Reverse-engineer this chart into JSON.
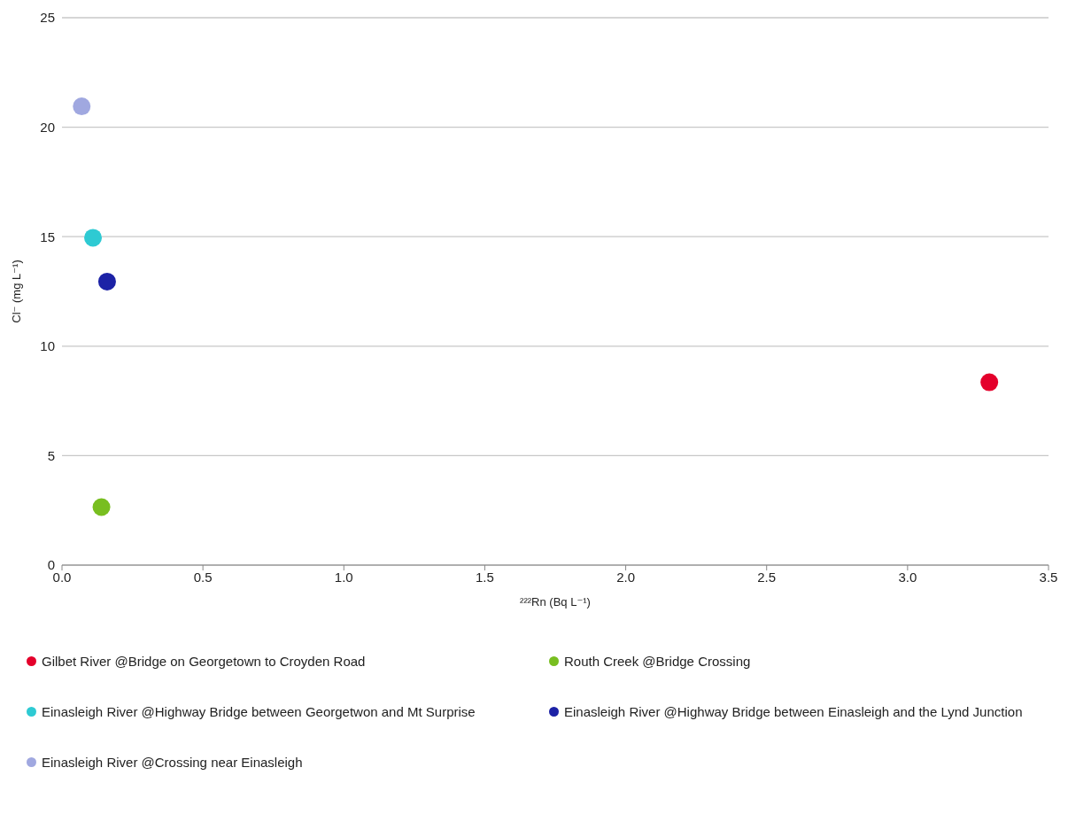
{
  "chart_data": {
    "type": "scatter",
    "xlabel": "²²²Rn (Bq L⁻¹)",
    "ylabel": "Cl⁻ (mg L⁻¹)",
    "xlim": [
      0,
      3.5
    ],
    "xticks": [
      {
        "value": 0,
        "label": "0.0"
      },
      {
        "value": 0.5,
        "label": "0.5"
      },
      {
        "value": 1,
        "label": "1.0"
      },
      {
        "value": 1.5,
        "label": "1.5"
      },
      {
        "value": 2,
        "label": "2.0"
      },
      {
        "value": 2.5,
        "label": "2.5"
      },
      {
        "value": 3,
        "label": "3.0"
      },
      {
        "value": 3.5,
        "label": "3.5"
      }
    ],
    "ylim": [
      0,
      25
    ],
    "yticks": [
      0,
      5,
      10,
      15,
      20,
      25
    ],
    "grid": "y",
    "legend": "bottom",
    "marker": "circle",
    "series": [
      {
        "name": "Gilbet River @Bridge on Georgetown to Croyden Road",
        "color": "#e4002b",
        "x": [
          3.29
        ],
        "values": [
          8.35
        ]
      },
      {
        "name": "Routh Creek @Bridge Crossing",
        "color": "#78be20",
        "x": [
          0.14
        ],
        "values": [
          2.65
        ]
      },
      {
        "name": "Einasleigh River @Highway Bridge between Georgetwon and Mt Surprise",
        "color": "#2ecad3",
        "x": [
          0.11
        ],
        "values": [
          14.95
        ]
      },
      {
        "name": "Einasleigh River @Highway Bridge between Einasleigh and the Lynd Junction",
        "color": "#1c22a6",
        "x": [
          0.16
        ],
        "values": [
          12.95
        ]
      },
      {
        "name": "Einasleigh River @Crossing near Einasleigh",
        "color": "#a0a8e0",
        "x": [
          0.07
        ],
        "values": [
          20.95
        ]
      }
    ]
  }
}
